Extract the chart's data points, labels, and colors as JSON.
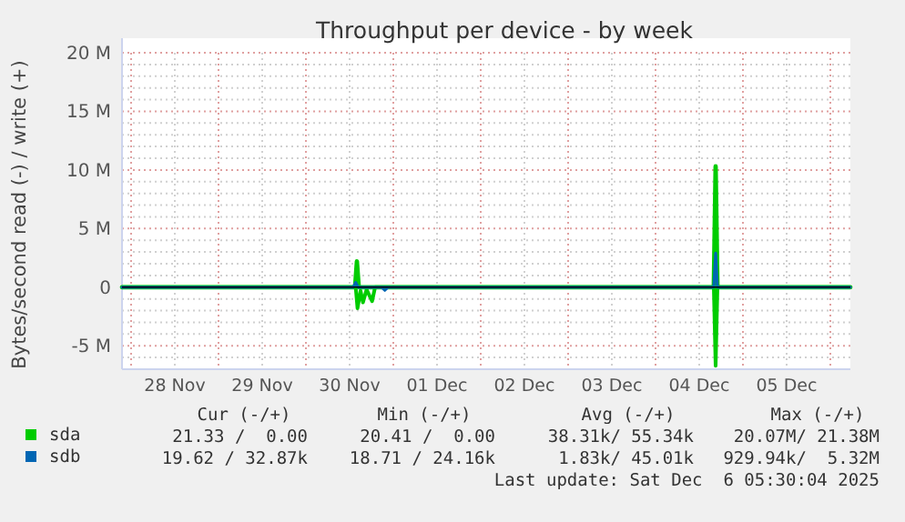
{
  "chart_data": {
    "type": "line",
    "title": "Throughput per device - by week",
    "ylabel": "Bytes/second read (-) / write (+)",
    "xlim": [
      "2025-11-27T21:30",
      "2025-12-06T05:30"
    ],
    "xticks": [
      {
        "value": "2025-11-28T00:00",
        "label": null
      },
      {
        "value": "2025-11-28T12:00",
        "label": "28 Nov"
      },
      {
        "value": "2025-11-29T00:00",
        "label": null
      },
      {
        "value": "2025-11-29T12:00",
        "label": "29 Nov"
      },
      {
        "value": "2025-11-30T00:00",
        "label": null
      },
      {
        "value": "2025-11-30T12:00",
        "label": "30 Nov"
      },
      {
        "value": "2025-12-01T00:00",
        "label": null
      },
      {
        "value": "2025-12-01T12:00",
        "label": "01 Dec"
      },
      {
        "value": "2025-12-02T00:00",
        "label": null
      },
      {
        "value": "2025-12-02T12:00",
        "label": "02 Dec"
      },
      {
        "value": "2025-12-03T00:00",
        "label": null
      },
      {
        "value": "2025-12-03T12:00",
        "label": "03 Dec"
      },
      {
        "value": "2025-12-04T00:00",
        "label": null
      },
      {
        "value": "2025-12-04T12:00",
        "label": "04 Dec"
      },
      {
        "value": "2025-12-05T00:00",
        "label": null
      },
      {
        "value": "2025-12-05T12:00",
        "label": "05 Dec"
      },
      {
        "value": "2025-12-06T00:00",
        "label": null
      }
    ],
    "ylim": [
      -7000000,
      20000000
    ],
    "yticks": [
      {
        "value": -5000000,
        "label": "-5 M"
      },
      {
        "value": 0,
        "label": "0"
      },
      {
        "value": 5000000,
        "label": "5 M"
      },
      {
        "value": 10000000,
        "label": "10 M"
      },
      {
        "value": 15000000,
        "label": "15 M"
      },
      {
        "value": 20000000,
        "label": "20 M"
      },
      {
        "value": -6000000,
        "label": null
      },
      {
        "value": -4000000,
        "label": null
      },
      {
        "value": -3000000,
        "label": null
      },
      {
        "value": -2000000,
        "label": null
      },
      {
        "value": -1000000,
        "label": null
      },
      {
        "value": 1000000,
        "label": null
      },
      {
        "value": 2000000,
        "label": null
      },
      {
        "value": 3000000,
        "label": null
      },
      {
        "value": 4000000,
        "label": null
      },
      {
        "value": 6000000,
        "label": null
      },
      {
        "value": 7000000,
        "label": null
      },
      {
        "value": 8000000,
        "label": null
      },
      {
        "value": 9000000,
        "label": null
      },
      {
        "value": 11000000,
        "label": null
      },
      {
        "value": 12000000,
        "label": null
      },
      {
        "value": 13000000,
        "label": null
      },
      {
        "value": 14000000,
        "label": null
      },
      {
        "value": 16000000,
        "label": null
      },
      {
        "value": 17000000,
        "label": null
      },
      {
        "value": 18000000,
        "label": null
      },
      {
        "value": 19000000,
        "label": null
      }
    ],
    "grid": true,
    "legend": "bottom",
    "ref_lines": [
      {
        "axis": "y",
        "value": 0,
        "color": "#000000"
      }
    ],
    "series": [
      {
        "name": "sda",
        "color": "#00cc00",
        "x": [
          "2025-11-27T21:30",
          "2025-11-30T13:30",
          "2025-11-30T14:00",
          "2025-11-30T14:30",
          "2025-12-04T16:00",
          "2025-12-04T16:30",
          "2025-12-04T17:00",
          "2025-12-06T05:30"
        ],
        "values": [
          0,
          0,
          2200000,
          0,
          0,
          10300000,
          0,
          0
        ]
      },
      {
        "color": "#00cc00",
        "x": [
          "2025-11-27T21:30",
          "2025-11-30T13:40",
          "2025-11-30T14:10",
          "2025-11-30T15:00",
          "2025-11-30T15:40",
          "2025-11-30T16:40",
          "2025-11-30T18:10",
          "2025-11-30T19:00",
          "2025-12-04T16:00",
          "2025-12-04T16:30",
          "2025-12-04T17:00",
          "2025-12-06T05:30"
        ],
        "values": [
          0,
          0,
          -1800000,
          -300000,
          -1300000,
          -200000,
          -1200000,
          0,
          0,
          -6700000,
          0,
          0
        ]
      },
      {
        "name": "sdb",
        "color": "#0066b3",
        "x": [
          "2025-11-27T21:30",
          "2025-11-30T13:00",
          "2025-11-30T13:40",
          "2025-11-30T14:20",
          "2025-12-04T16:00",
          "2025-12-04T16:30",
          "2025-12-04T17:00",
          "2025-12-06T05:30"
        ],
        "values": [
          0,
          0,
          400000,
          0,
          0,
          2900000,
          0,
          0
        ]
      },
      {
        "color": "#0066b3",
        "x": [
          "2025-11-30T20:40",
          "2025-11-30T21:40",
          "2025-11-30T22:40"
        ],
        "values": [
          0,
          -300000,
          0
        ]
      }
    ],
    "annotations": [
      "Cur (-/+)",
      "Min (-/+)",
      "Avg (-/+)",
      "Max (-/+)",
      "21.33 /  0.00",
      "20.41 /  0.00",
      "38.31k/ 55.34k",
      "20.07M/ 21.38M",
      "19.62 / 32.87k",
      "18.71 / 24.16k",
      "1.83k/ 45.01k",
      "929.94k/  5.32M",
      "Last update: Sat Dec  6 05:30:04 2025"
    ]
  }
}
